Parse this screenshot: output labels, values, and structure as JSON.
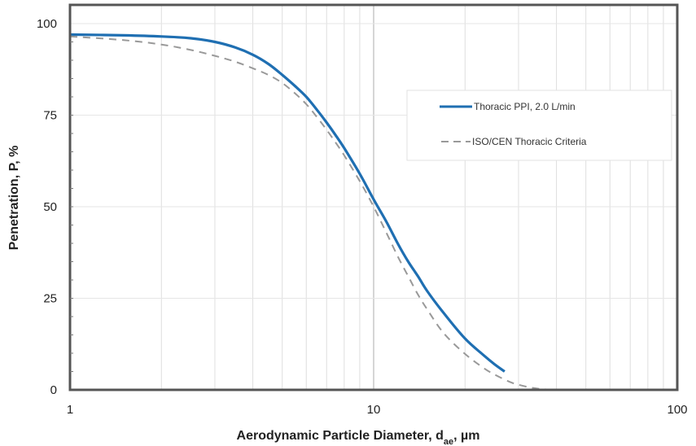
{
  "chart_data": {
    "type": "line",
    "title": "",
    "xlabel": "Aerodynamic Particle Diameter, d",
    "xlabel_subscript": "ae",
    "xlabel_unit": ", µm",
    "ylabel": "Penetration, P, %",
    "xscale": "log",
    "xlim": [
      1,
      100
    ],
    "ylim": [
      0,
      100
    ],
    "x_ticks": [
      1,
      10,
      100
    ],
    "x_tick_labels": [
      "1",
      "10",
      "100"
    ],
    "y_ticks": [
      0,
      25,
      50,
      75,
      100
    ],
    "y_tick_labels": [
      "0",
      "25",
      "50",
      "75",
      "100"
    ],
    "grid": true,
    "legend_position": "upper right",
    "series": [
      {
        "name": "Thoracic PPI, 2.0 L/min",
        "style": "solid",
        "color": "#1f6fb2",
        "x": [
          1,
          1.5,
          2,
          2.5,
          3,
          3.5,
          4,
          4.5,
          5,
          5.5,
          6,
          6.5,
          7,
          7.5,
          8,
          9,
          10,
          11,
          12,
          13,
          14,
          15,
          17,
          20,
          23,
          25,
          27
        ],
        "y": [
          97,
          96.8,
          96.5,
          96,
          95,
          93.5,
          91.5,
          89,
          86,
          83,
          80,
          76.5,
          73,
          69.5,
          66,
          59,
          52,
          46,
          40,
          35,
          31,
          27,
          21,
          14,
          9.5,
          7,
          5
        ]
      },
      {
        "name": "ISO/CEN Thoracic Criteria",
        "style": "dashed",
        "color": "#999999",
        "x": [
          1,
          1.5,
          2,
          2.5,
          3,
          3.5,
          4,
          4.5,
          5,
          5.5,
          6,
          6.5,
          7,
          7.5,
          8,
          9,
          10,
          11,
          12,
          13,
          14,
          15,
          17,
          20,
          23,
          25,
          28,
          30,
          33,
          36,
          40
        ],
        "y": [
          96.5,
          95.5,
          94.3,
          92.8,
          91.2,
          89.6,
          87.8,
          86,
          83.8,
          81,
          78,
          74.5,
          71,
          67.5,
          64,
          57,
          50,
          43,
          36.5,
          31,
          26,
          22,
          15.5,
          9.8,
          6,
          4.2,
          2.2,
          1.4,
          0.6,
          0.2,
          0
        ]
      }
    ]
  },
  "legend": {
    "items": [
      {
        "label": "Thoracic PPI, 2.0 L/min"
      },
      {
        "label": "ISO/CEN Thoracic Criteria"
      }
    ]
  },
  "axes": {
    "x_title": "Aerodynamic Particle Diameter, d",
    "x_title_sub": "ae",
    "x_title_unit": ", µm",
    "y_title": "Penetration, P, %",
    "x_tick_labels": [
      "1",
      "10",
      "100"
    ],
    "y_tick_labels": [
      "0",
      "25",
      "50",
      "75",
      "100"
    ]
  },
  "colors": {
    "series1": "#1f6fb2",
    "series2": "#999999",
    "frame": "#555555",
    "grid": "#d9d9d9"
  }
}
